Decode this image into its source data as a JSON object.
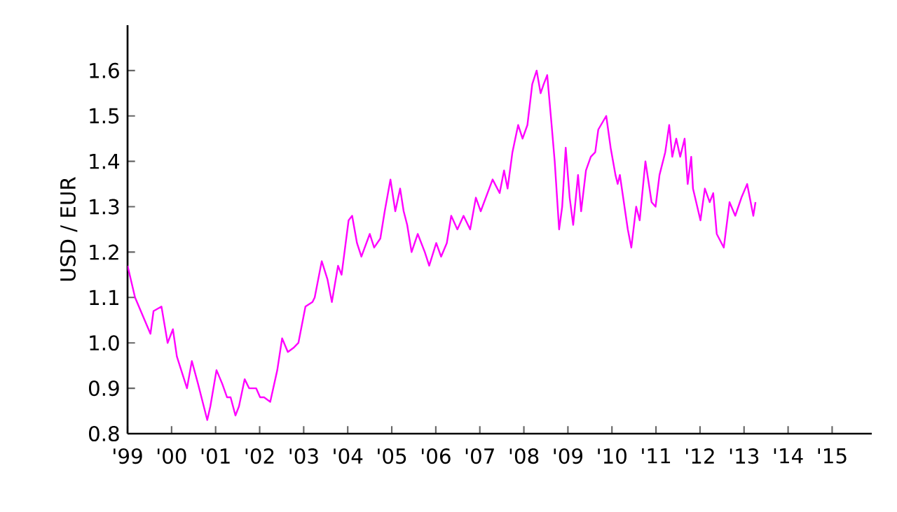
{
  "chart_data": {
    "type": "line",
    "ylabel": "USD / EUR",
    "color": "#ff00ff",
    "marker": "none",
    "line_style": "solid",
    "grid": false,
    "xlim": [
      1999,
      2015.9
    ],
    "ylim": [
      0.8,
      1.7
    ],
    "xticks": [
      {
        "value": 1999,
        "label": "'99"
      },
      {
        "value": 2000,
        "label": "'00"
      },
      {
        "value": 2001,
        "label": "'01"
      },
      {
        "value": 2002,
        "label": "'02"
      },
      {
        "value": 2003,
        "label": "'03"
      },
      {
        "value": 2004,
        "label": "'04"
      },
      {
        "value": 2005,
        "label": "'05"
      },
      {
        "value": 2006,
        "label": "'06"
      },
      {
        "value": 2007,
        "label": "'07"
      },
      {
        "value": 2008,
        "label": "'08"
      },
      {
        "value": 2009,
        "label": "'09"
      },
      {
        "value": 2010,
        "label": "'10"
      },
      {
        "value": 2011,
        "label": "'11"
      },
      {
        "value": 2012,
        "label": "'12"
      },
      {
        "value": 2013,
        "label": "'13"
      },
      {
        "value": 2014,
        "label": "'14"
      },
      {
        "value": 2015,
        "label": "'15"
      }
    ],
    "yticks": [
      0.8,
      0.9,
      {
        "value": 1,
        "label": "1.0"
      },
      1.1,
      1.2,
      1.3,
      1.4,
      1.5,
      1.6
    ],
    "x": [
      1999.0,
      1999.17,
      1999.52,
      1999.59,
      1999.77,
      1999.91,
      2000.03,
      2000.12,
      2000.35,
      2000.46,
      2000.6,
      2000.81,
      2000.88,
      2001.02,
      2001.15,
      2001.26,
      2001.34,
      2001.45,
      2001.53,
      2001.66,
      2001.76,
      2001.92,
      2002.01,
      2002.1,
      2002.24,
      2002.4,
      2002.51,
      2002.64,
      2002.78,
      2002.88,
      2003.04,
      2003.2,
      2003.25,
      2003.41,
      2003.54,
      2003.64,
      2003.78,
      2003.86,
      2004.02,
      2004.1,
      2004.21,
      2004.31,
      2004.5,
      2004.6,
      2004.74,
      2004.84,
      2004.97,
      2005.08,
      2005.19,
      2005.27,
      2005.35,
      2005.45,
      2005.59,
      2005.75,
      2005.85,
      2006.01,
      2006.12,
      2006.25,
      2006.35,
      2006.49,
      2006.63,
      2006.78,
      2006.91,
      2007.02,
      2007.29,
      2007.45,
      2007.55,
      2007.63,
      2007.74,
      2007.87,
      2007.97,
      2008.08,
      2008.19,
      2008.29,
      2008.38,
      2008.45,
      2008.53,
      2008.63,
      2008.7,
      2008.8,
      2008.87,
      2008.95,
      2009.04,
      2009.12,
      2009.23,
      2009.3,
      2009.41,
      2009.52,
      2009.62,
      2009.69,
      2009.87,
      2009.97,
      2010.08,
      2010.13,
      2010.18,
      2010.36,
      2010.44,
      2010.55,
      2010.63,
      2010.76,
      2010.9,
      2010.99,
      2011.08,
      2011.21,
      2011.3,
      2011.37,
      2011.46,
      2011.55,
      2011.65,
      2011.72,
      2011.8,
      2011.84,
      2012.01,
      2012.11,
      2012.22,
      2012.3,
      2012.38,
      2012.54,
      2012.67,
      2012.8,
      2012.94,
      2013.07,
      2013.21,
      2013.26
    ],
    "values": [
      1.17,
      1.1,
      1.02,
      1.07,
      1.08,
      1.0,
      1.03,
      0.97,
      0.9,
      0.96,
      0.91,
      0.83,
      0.86,
      0.94,
      0.91,
      0.88,
      0.88,
      0.84,
      0.86,
      0.92,
      0.9,
      0.9,
      0.88,
      0.88,
      0.87,
      0.94,
      1.01,
      0.98,
      0.99,
      1.0,
      1.08,
      1.09,
      1.1,
      1.18,
      1.14,
      1.09,
      1.17,
      1.15,
      1.27,
      1.28,
      1.22,
      1.19,
      1.24,
      1.21,
      1.23,
      1.29,
      1.36,
      1.29,
      1.34,
      1.29,
      1.26,
      1.2,
      1.24,
      1.2,
      1.17,
      1.22,
      1.19,
      1.22,
      1.28,
      1.25,
      1.28,
      1.25,
      1.32,
      1.29,
      1.36,
      1.33,
      1.38,
      1.34,
      1.42,
      1.48,
      1.45,
      1.48,
      1.57,
      1.6,
      1.55,
      1.57,
      1.59,
      1.48,
      1.4,
      1.25,
      1.3,
      1.43,
      1.32,
      1.26,
      1.37,
      1.29,
      1.38,
      1.41,
      1.42,
      1.47,
      1.5,
      1.43,
      1.37,
      1.35,
      1.37,
      1.25,
      1.21,
      1.3,
      1.27,
      1.4,
      1.31,
      1.3,
      1.37,
      1.42,
      1.48,
      1.41,
      1.45,
      1.41,
      1.45,
      1.35,
      1.41,
      1.34,
      1.27,
      1.34,
      1.31,
      1.33,
      1.24,
      1.21,
      1.31,
      1.28,
      1.32,
      1.35,
      1.28,
      1.31
    ]
  }
}
